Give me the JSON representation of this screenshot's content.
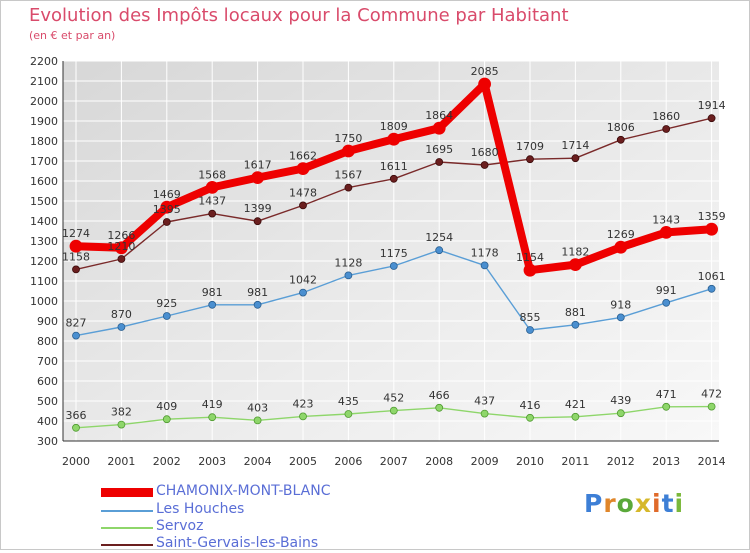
{
  "chart_data": {
    "type": "line",
    "title": "Evolution des Impôts locaux pour la Commune par Habitant",
    "subtitle": "(en € et par an)",
    "x": [
      "2000",
      "2001",
      "2002",
      "2003",
      "2004",
      "2005",
      "2006",
      "2007",
      "2008",
      "2009",
      "2010",
      "2011",
      "2012",
      "2013",
      "2014"
    ],
    "ylim": [
      300,
      2200
    ],
    "yticks": [
      300,
      400,
      500,
      600,
      700,
      800,
      900,
      1000,
      1100,
      1200,
      1300,
      1400,
      1500,
      1600,
      1700,
      1800,
      1900,
      2000,
      2100,
      2200
    ],
    "grid": true,
    "legend_position": "bottom-left",
    "series": [
      {
        "name": "CHAMONIX-MONT-BLANC",
        "color": "#ee0000",
        "values": [
          1274,
          1266,
          1469,
          1568,
          1617,
          1662,
          1750,
          1809,
          1864,
          2085,
          1154,
          1182,
          1269,
          1343,
          1359
        ]
      },
      {
        "name": "Les Houches",
        "color": "#5a9ed6",
        "values": [
          827,
          870,
          925,
          981,
          981,
          1042,
          1128,
          1175,
          1254,
          1178,
          855,
          881,
          918,
          991,
          1061
        ]
      },
      {
        "name": "Servoz",
        "color": "#8ed66a",
        "values": [
          366,
          382,
          409,
          419,
          403,
          423,
          435,
          452,
          466,
          437,
          416,
          421,
          439,
          471,
          472
        ]
      },
      {
        "name": "Saint-Gervais-les-Bains",
        "color": "#6b1f1f",
        "values": [
          1158,
          1210,
          1395,
          1437,
          1399,
          1478,
          1567,
          1611,
          1695,
          1680,
          1709,
          1714,
          1806,
          1860,
          1914
        ]
      }
    ]
  },
  "logo": {
    "letters": [
      "P",
      "r",
      "o",
      "x",
      "i",
      "t",
      "i"
    ]
  }
}
